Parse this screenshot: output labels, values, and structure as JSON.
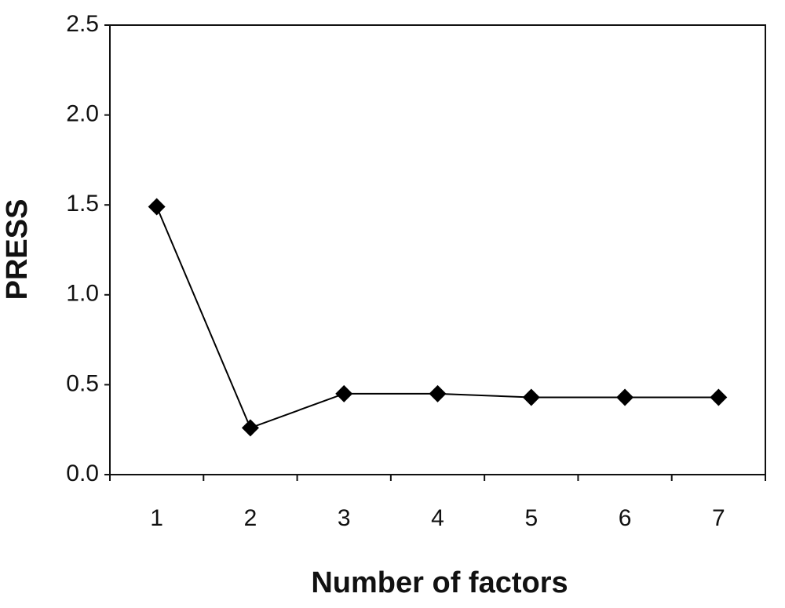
{
  "chart_data": {
    "type": "line",
    "x_label": "Number of factors",
    "y_label": "PRESS",
    "categories": [
      "1",
      "2",
      "3",
      "4",
      "5",
      "6",
      "7"
    ],
    "series": [
      {
        "name": "PRESS",
        "color": "#000000",
        "values": [
          1.49,
          0.26,
          0.45,
          0.45,
          0.43,
          0.43,
          0.43
        ]
      }
    ],
    "ylim": [
      0,
      2.5
    ],
    "yticks": [
      {
        "value": 0,
        "label": "0.0"
      },
      0.5,
      {
        "value": 1,
        "label": "1.0"
      },
      1.5,
      {
        "value": 2,
        "label": "2.0"
      },
      2.5
    ],
    "marker": "diamond"
  }
}
